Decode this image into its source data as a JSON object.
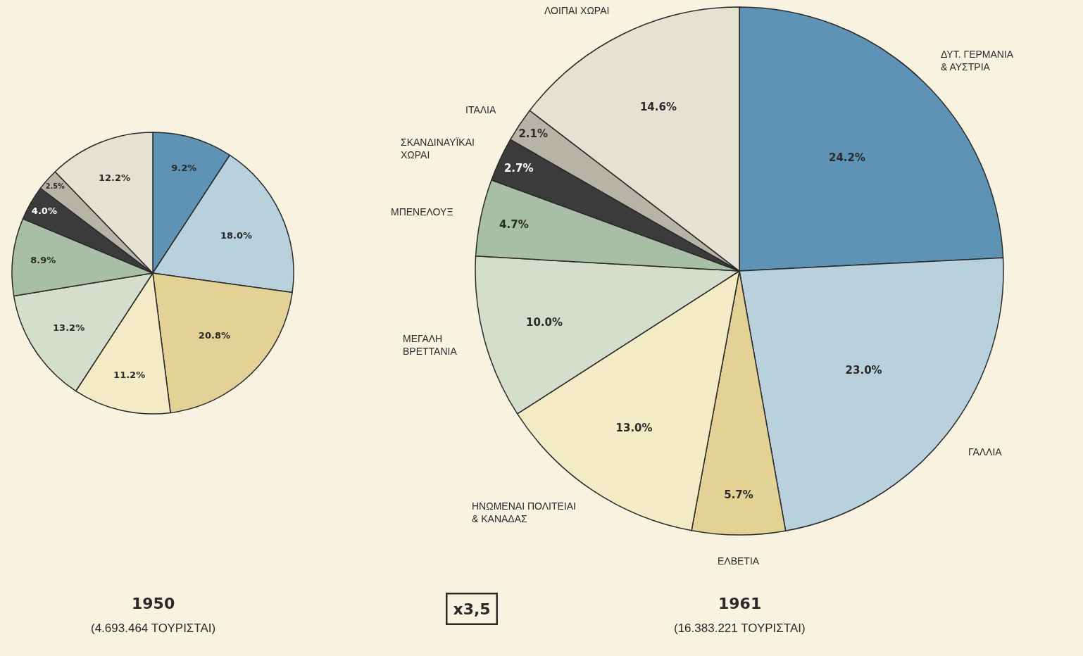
{
  "chart_data": [
    {
      "type": "pie",
      "title": "1950",
      "subtitle": "(4.693.464 ΤΟΥΡΙΣΤΑΙ)",
      "categories": [
        null,
        null,
        null,
        null,
        null,
        null,
        null,
        null,
        null
      ],
      "values": [
        9.2,
        18.0,
        20.8,
        11.2,
        13.2,
        8.9,
        4.0,
        2.5,
        12.2
      ],
      "value_labels": [
        "9.2%",
        "18.0%",
        "20.8%",
        "11.2%",
        "13.2%",
        "8.9%",
        "4.0%",
        "2.5%",
        "12.2%"
      ],
      "colors": [
        "#5e93b5",
        "#b9d1dd",
        "#e4d196",
        "#f3eac6",
        "#d5ddcd",
        "#a9bea6",
        "#3b3b3b",
        "#b6b4a7",
        "#e5e1d3"
      ]
    },
    {
      "type": "pie",
      "title": "1961",
      "subtitle": "(16.383.221 ΤΟΥΡΙΣΤΑΙ)",
      "categories": [
        "ΔΥΤ. ΓΕΡΜΑΝΙΑ & ΑΥΣΤΡΙΑ",
        "ΓΑΛΛΙΑ",
        "ΕΛΒΕΤΙΑ",
        "ΗΝΩΜΕΝΑΙ ΠΟΛΙΤΕΙΑΙ & ΚΑΝΑΔΑΣ",
        "ΜΕΓΑΛΗ ΒΡΕΤΤΑΝΙΑ",
        "ΜΠΕΝΕΛΟΥΞ",
        "ΣΚΑΝΔΙΝΑΥΪΚΑΙ ΧΩΡΑΙ",
        "ΙΤΑΛΙΑ",
        "ΛΟΙΠΑΙ ΧΩΡΑΙ"
      ],
      "values": [
        24.2,
        23.0,
        5.7,
        13.0,
        10.0,
        4.7,
        2.7,
        2.1,
        14.6
      ],
      "value_labels": [
        "24.2%",
        "23.0%",
        "5.7%",
        "13.0%",
        "10.0%",
        "4.7%",
        "2.7%",
        "2.1%",
        "14.6%"
      ],
      "colors": [
        "#5e93b5",
        "#b9d1dd",
        "#e4d196",
        "#f3eac6",
        "#d5ddcd",
        "#a9bea6",
        "#3b3b3b",
        "#b6b4a7",
        "#e5e1d3"
      ],
      "annotations": [
        "x3,5"
      ]
    }
  ]
}
